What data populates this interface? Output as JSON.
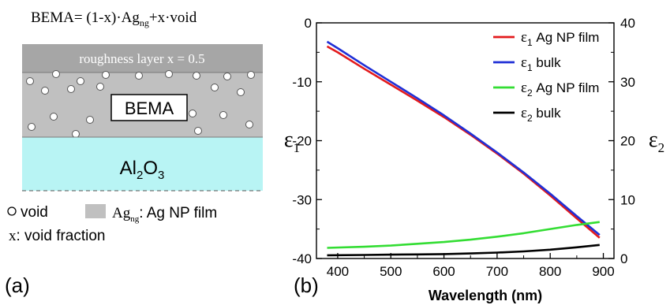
{
  "panel_a": {
    "label": "(a)",
    "equation": {
      "prefix": "BEMA= (1-x)·Ag",
      "sub": "ng",
      "suffix": "+x·void"
    },
    "roughness_label": "roughness layer x = 0.5",
    "bema_label": "BEMA",
    "substrate": {
      "base": "Al",
      "sub1": "2",
      "mid": "O",
      "sub2": "3"
    },
    "legend_void": "void",
    "legend_ag_main": "Ag",
    "legend_ag_sub": "ng",
    "legend_ag_desc": ": Ag NP film",
    "void_fraction_label": "x: void fraction",
    "colors": {
      "roughness": "#a6a6a6",
      "bema": "#c0c0c0",
      "substrate": "#b8f4f4"
    }
  },
  "panel_b": {
    "label": "(b)",
    "chart_data": {
      "type": "line",
      "xlabel": "Wavelength (nm)",
      "ylabel_left": {
        "main": "ε",
        "sub": "1"
      },
      "ylabel_right": {
        "main": "ε",
        "sub": "2"
      },
      "xlim": [
        360,
        920
      ],
      "ylim_left": [
        -40,
        0
      ],
      "ylim_right": [
        0,
        40
      ],
      "x_ticks": [
        "400",
        "500",
        "600",
        "700",
        "800",
        "900"
      ],
      "y_ticks_left": [
        "0",
        "-10",
        "-20",
        "-30",
        "-40"
      ],
      "y_ticks_right": [
        "0",
        "10",
        "20",
        "30",
        "40"
      ],
      "legend_position": "top-right",
      "series": [
        {
          "name": "Ag NP film",
          "symbol": "ε",
          "sub": "1",
          "axis": "left",
          "color": "#e31a1c",
          "x": [
            380,
            400,
            450,
            500,
            550,
            600,
            650,
            700,
            750,
            800,
            850,
            893
          ],
          "y": [
            -4.0,
            -5.0,
            -7.8,
            -10.5,
            -13.2,
            -16.0,
            -19.0,
            -22.2,
            -25.6,
            -29.3,
            -33.2,
            -36.5
          ]
        },
        {
          "name": "bulk",
          "symbol": "ε",
          "sub": "1",
          "axis": "left",
          "color": "#1f2fd6",
          "x": [
            380,
            400,
            450,
            500,
            550,
            600,
            650,
            700,
            750,
            800,
            850,
            893
          ],
          "y": [
            -3.2,
            -4.3,
            -7.2,
            -10.0,
            -12.8,
            -15.7,
            -18.8,
            -22.0,
            -25.4,
            -29.0,
            -32.8,
            -36.0
          ]
        },
        {
          "name": "Ag NP film",
          "symbol": "ε",
          "sub": "2",
          "axis": "right",
          "color": "#33dd33",
          "x": [
            380,
            450,
            500,
            550,
            600,
            650,
            700,
            750,
            800,
            850,
            893
          ],
          "y": [
            1.8,
            2.0,
            2.2,
            2.5,
            2.8,
            3.2,
            3.7,
            4.3,
            5.0,
            5.7,
            6.2
          ]
        },
        {
          "name": "bulk",
          "symbol": "ε",
          "sub": "2",
          "axis": "right",
          "color": "#000000",
          "x": [
            380,
            450,
            500,
            550,
            600,
            650,
            700,
            750,
            800,
            850,
            893
          ],
          "y": [
            0.55,
            0.6,
            0.65,
            0.7,
            0.75,
            0.85,
            1.0,
            1.2,
            1.5,
            1.9,
            2.3
          ]
        }
      ]
    }
  }
}
